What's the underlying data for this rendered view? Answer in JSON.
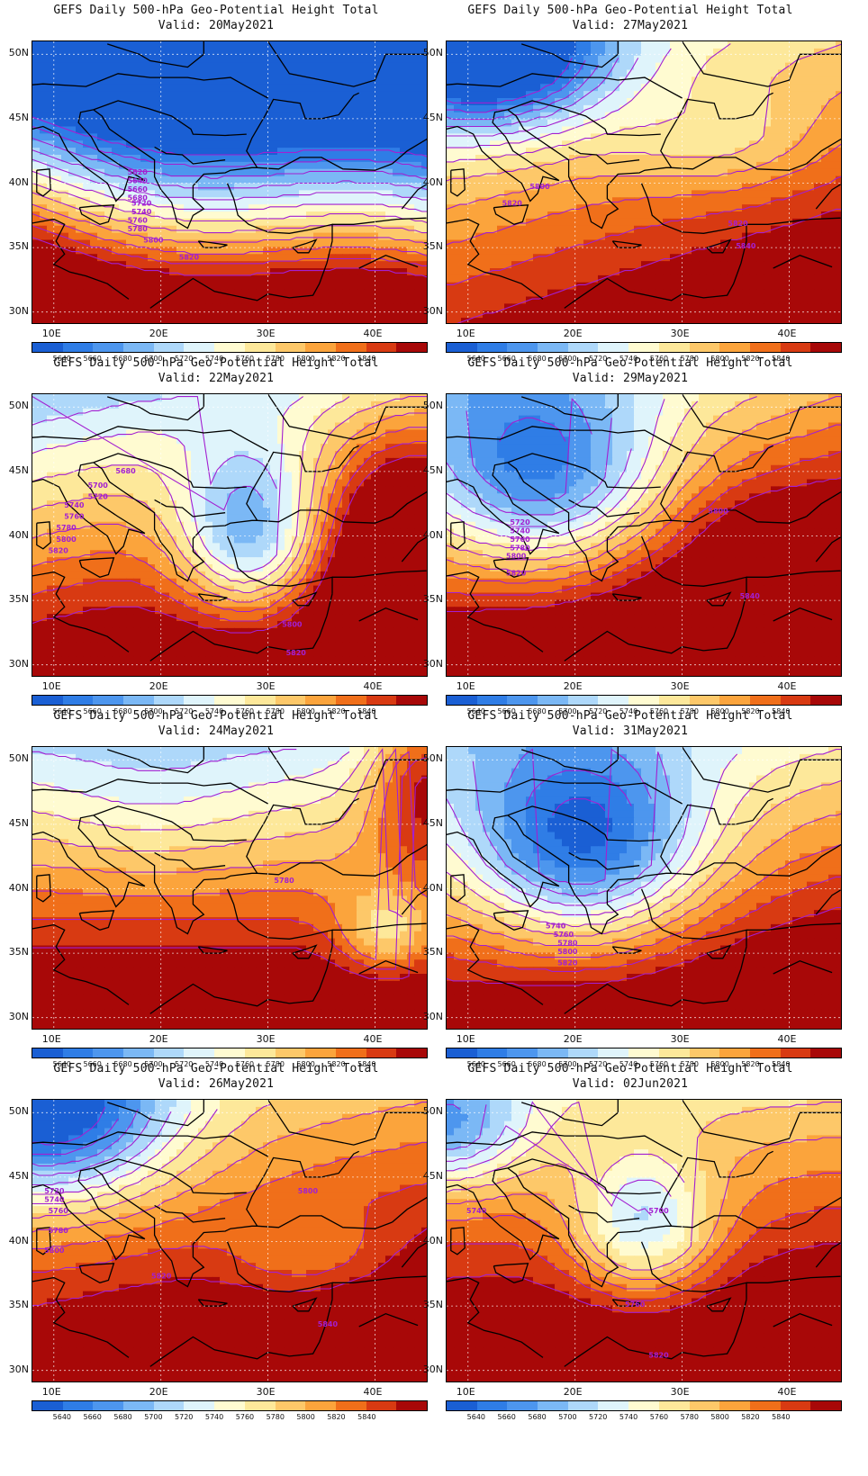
{
  "panels": [
    {
      "title": "GEFS Daily 500-hPa Geo-Potential Height Total",
      "valid": "Valid: 20May2021",
      "pattern": "trough-north",
      "contour_labels": [
        "5620",
        "5640",
        "5660",
        "5680",
        "5720",
        "5740",
        "5760",
        "5780",
        "5800",
        "5820"
      ]
    },
    {
      "title": "GEFS Daily 500-hPa Geo-Potential Height Total",
      "valid": "Valid: 27May2021",
      "pattern": "ridge-east",
      "contour_labels": [
        "5800",
        "5820",
        "5820",
        "5840"
      ]
    },
    {
      "title": "GEFS Daily 500-hPa Geo-Potential Height Total",
      "valid": "Valid: 22May2021",
      "pattern": "cutoff-low",
      "contour_labels": [
        "5680",
        "5700",
        "5720",
        "5740",
        "5760",
        "5780",
        "5800",
        "5820",
        "5800",
        "5820"
      ]
    },
    {
      "title": "GEFS Daily 500-hPa Geo-Potential Height Total",
      "valid": "Valid: 29May2021",
      "pattern": "trough-west",
      "contour_labels": [
        "5720",
        "5740",
        "5760",
        "5780",
        "5800",
        "5820",
        "5800",
        "5840"
      ]
    },
    {
      "title": "GEFS Daily 500-hPa Geo-Potential Height Total",
      "valid": "Valid: 24May2021",
      "pattern": "low-east",
      "contour_labels": [
        "5780"
      ]
    },
    {
      "title": "GEFS Daily 500-hPa Geo-Potential Height Total",
      "valid": "Valid: 31May2021",
      "pattern": "trough-central",
      "contour_labels": [
        "5740",
        "5760",
        "5780",
        "5800",
        "5820"
      ]
    },
    {
      "title": "GEFS Daily 500-hPa Geo-Potential Height Total",
      "valid": "Valid: 26May2021",
      "pattern": "ridge-turkey",
      "contour_labels": [
        "5720",
        "5740",
        "5760",
        "5780",
        "5800",
        "5800",
        "5820",
        "5840"
      ]
    },
    {
      "title": "GEFS Daily 500-hPa Geo-Potential Height Total",
      "valid": "Valid: 02Jun2021",
      "pattern": "low-aegean",
      "contour_labels": [
        "5740",
        "5700",
        "5760",
        "5820"
      ]
    }
  ],
  "axes": {
    "lat_labels": [
      "50N",
      "45N",
      "40N",
      "35N",
      "30N"
    ],
    "lon_labels": [
      "10E",
      "20E",
      "30E",
      "40E"
    ]
  },
  "colorbar": {
    "colors": [
      "#1a5fd4",
      "#2f7de6",
      "#4d96ee",
      "#7bb8f5",
      "#aed8fa",
      "#dff4fb",
      "#fffbd1",
      "#fde89a",
      "#fdc869",
      "#fba43c",
      "#f06f1a",
      "#d83a12",
      "#a80808"
    ],
    "labels": [
      "5640",
      "5660",
      "5680",
      "5700",
      "5720",
      "5740",
      "5760",
      "5780",
      "5800",
      "5820",
      "5840"
    ]
  },
  "contour_color": "#a31fd1",
  "coast_color": "#000000"
}
